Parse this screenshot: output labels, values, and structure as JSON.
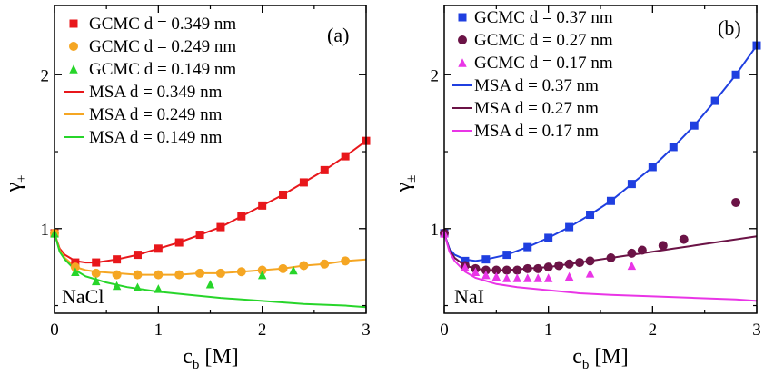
{
  "chart_data": [
    {
      "type": "scatter+line",
      "panel_tag": "(a)",
      "salt": "NaCl",
      "ylabel": "γ",
      "ylabel_sub": "±",
      "xlabel": "c",
      "xlabel_sub": "b",
      "xlabel_unit": "[M]",
      "xlim": [
        0,
        3
      ],
      "ylim": [
        0.45,
        2.45
      ],
      "xticks": [
        0,
        1,
        2,
        3
      ],
      "yticks": [
        1,
        2
      ],
      "grid": false,
      "legend_position": "top-right",
      "series": [
        {
          "name": "GCMC d = 0.349 nm",
          "kind": "points",
          "marker": "square",
          "color": "#e8171b",
          "x": [
            0.0,
            0.2,
            0.4,
            0.6,
            0.8,
            1.0,
            1.2,
            1.4,
            1.6,
            1.8,
            2.0,
            2.2,
            2.4,
            2.6,
            2.8,
            3.0
          ],
          "y": [
            0.97,
            0.78,
            0.78,
            0.8,
            0.83,
            0.87,
            0.91,
            0.96,
            1.01,
            1.08,
            1.15,
            1.22,
            1.3,
            1.38,
            1.47,
            1.57
          ]
        },
        {
          "name": "GCMC d = 0.249 nm",
          "kind": "points",
          "marker": "circle",
          "color": "#f5a623",
          "x": [
            0.0,
            0.2,
            0.4,
            0.6,
            0.8,
            1.0,
            1.2,
            1.4,
            1.6,
            1.8,
            2.0,
            2.2,
            2.4,
            2.6,
            2.8
          ],
          "y": [
            0.97,
            0.75,
            0.71,
            0.7,
            0.7,
            0.7,
            0.7,
            0.71,
            0.71,
            0.72,
            0.73,
            0.74,
            0.76,
            0.77,
            0.79
          ]
        },
        {
          "name": "GCMC d = 0.149 nm",
          "kind": "points",
          "marker": "triangle",
          "color": "#27d52a",
          "x": [
            0.0,
            0.2,
            0.4,
            0.6,
            0.8,
            1.0,
            1.5,
            2.0,
            2.3
          ],
          "y": [
            0.97,
            0.72,
            0.66,
            0.63,
            0.62,
            0.61,
            0.64,
            0.7,
            0.73
          ]
        },
        {
          "name": "MSA d = 0.349 nm",
          "kind": "line",
          "color": "#e8171b",
          "x": [
            0.0,
            0.05,
            0.1,
            0.2,
            0.3,
            0.4,
            0.6,
            0.8,
            1.0,
            1.2,
            1.4,
            1.6,
            1.8,
            2.0,
            2.2,
            2.4,
            2.6,
            2.8,
            3.0
          ],
          "y": [
            0.97,
            0.87,
            0.83,
            0.79,
            0.78,
            0.78,
            0.8,
            0.83,
            0.87,
            0.91,
            0.96,
            1.01,
            1.08,
            1.15,
            1.22,
            1.3,
            1.38,
            1.47,
            1.57
          ]
        },
        {
          "name": "MSA d = 0.249 nm",
          "kind": "line",
          "color": "#f5a623",
          "x": [
            0.0,
            0.05,
            0.1,
            0.2,
            0.3,
            0.4,
            0.6,
            0.8,
            1.0,
            1.2,
            1.4,
            1.6,
            1.8,
            2.0,
            2.2,
            2.4,
            2.6,
            2.8,
            3.0
          ],
          "y": [
            0.97,
            0.86,
            0.81,
            0.75,
            0.73,
            0.72,
            0.71,
            0.7,
            0.7,
            0.7,
            0.71,
            0.71,
            0.72,
            0.73,
            0.74,
            0.76,
            0.77,
            0.79,
            0.8
          ]
        },
        {
          "name": "MSA d = 0.149 nm",
          "kind": "line",
          "color": "#27d52a",
          "x": [
            0.0,
            0.05,
            0.1,
            0.2,
            0.3,
            0.5,
            0.7,
            1.0,
            1.3,
            1.6,
            2.0,
            2.4,
            2.8,
            3.0
          ],
          "y": [
            0.97,
            0.85,
            0.8,
            0.73,
            0.69,
            0.65,
            0.62,
            0.59,
            0.57,
            0.55,
            0.53,
            0.51,
            0.5,
            0.49
          ]
        }
      ]
    },
    {
      "type": "scatter+line",
      "panel_tag": "(b)",
      "salt": "NaI",
      "ylabel": "γ",
      "ylabel_sub": "±",
      "xlabel": "c",
      "xlabel_sub": "b",
      "xlabel_unit": "[M]",
      "xlim": [
        0,
        3
      ],
      "ylim": [
        0.45,
        2.45
      ],
      "xticks": [
        0,
        1,
        2,
        3
      ],
      "yticks": [
        1,
        2
      ],
      "grid": false,
      "legend_position": "top-left",
      "series": [
        {
          "name": "GCMC d = 0.37 nm",
          "kind": "points",
          "marker": "square",
          "color": "#1f3fe0",
          "x": [
            0.0,
            0.2,
            0.4,
            0.6,
            0.8,
            1.0,
            1.2,
            1.4,
            1.6,
            1.8,
            2.0,
            2.2,
            2.4,
            2.6,
            2.8,
            3.0
          ],
          "y": [
            0.97,
            0.79,
            0.8,
            0.83,
            0.88,
            0.94,
            1.01,
            1.09,
            1.18,
            1.29,
            1.4,
            1.53,
            1.67,
            1.83,
            2.0,
            2.19
          ]
        },
        {
          "name": "GCMC d = 0.27 nm",
          "kind": "points",
          "marker": "circle",
          "color": "#6b1346",
          "x": [
            0.0,
            0.2,
            0.3,
            0.4,
            0.5,
            0.6,
            0.7,
            0.8,
            0.9,
            1.0,
            1.1,
            1.2,
            1.3,
            1.4,
            1.6,
            1.8,
            1.9,
            2.1,
            2.3,
            2.8
          ],
          "y": [
            0.97,
            0.76,
            0.74,
            0.73,
            0.73,
            0.73,
            0.73,
            0.74,
            0.74,
            0.75,
            0.76,
            0.77,
            0.78,
            0.79,
            0.81,
            0.84,
            0.86,
            0.89,
            0.93,
            1.17
          ]
        },
        {
          "name": "GCMC d = 0.17 nm",
          "kind": "points",
          "marker": "triangle",
          "color": "#e935e6",
          "x": [
            0.0,
            0.2,
            0.3,
            0.4,
            0.5,
            0.6,
            0.7,
            0.8,
            0.9,
            1.0,
            1.2,
            1.4,
            1.8
          ],
          "y": [
            0.97,
            0.75,
            0.72,
            0.7,
            0.69,
            0.68,
            0.68,
            0.68,
            0.68,
            0.68,
            0.69,
            0.71,
            0.76
          ]
        },
        {
          "name": "MSA d = 0.37 nm",
          "kind": "line",
          "color": "#1f3fe0",
          "x": [
            0.0,
            0.05,
            0.1,
            0.2,
            0.3,
            0.4,
            0.6,
            0.8,
            1.0,
            1.2,
            1.4,
            1.6,
            1.8,
            2.0,
            2.2,
            2.4,
            2.6,
            2.8,
            3.0
          ],
          "y": [
            0.97,
            0.87,
            0.83,
            0.8,
            0.79,
            0.8,
            0.83,
            0.88,
            0.94,
            1.01,
            1.09,
            1.18,
            1.29,
            1.4,
            1.53,
            1.67,
            1.83,
            2.0,
            2.19
          ]
        },
        {
          "name": "MSA d = 0.27 nm",
          "kind": "line",
          "color": "#6b1346",
          "x": [
            0.0,
            0.05,
            0.1,
            0.2,
            0.3,
            0.4,
            0.6,
            0.8,
            1.0,
            1.2,
            1.4,
            1.6,
            1.8,
            2.0,
            2.2,
            2.4,
            2.6,
            2.8,
            3.0
          ],
          "y": [
            0.97,
            0.86,
            0.81,
            0.76,
            0.74,
            0.73,
            0.73,
            0.74,
            0.75,
            0.77,
            0.79,
            0.81,
            0.83,
            0.85,
            0.87,
            0.89,
            0.91,
            0.93,
            0.95
          ]
        },
        {
          "name": "MSA d = 0.17 nm",
          "kind": "line",
          "color": "#e935e6",
          "x": [
            0.0,
            0.05,
            0.1,
            0.2,
            0.3,
            0.5,
            0.7,
            1.0,
            1.3,
            1.6,
            2.0,
            2.4,
            2.8,
            3.0
          ],
          "y": [
            0.97,
            0.85,
            0.79,
            0.72,
            0.68,
            0.64,
            0.62,
            0.6,
            0.58,
            0.57,
            0.56,
            0.55,
            0.54,
            0.53
          ]
        }
      ]
    }
  ]
}
